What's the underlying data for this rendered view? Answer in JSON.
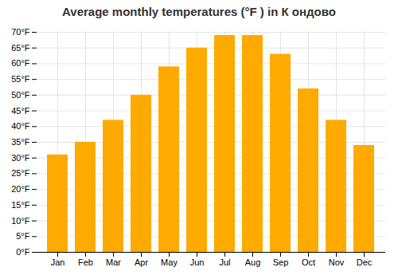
{
  "chart_data": {
    "type": "bar",
    "title": "Average monthly temperatures (°F ) in К ондово",
    "categories": [
      "Jan",
      "Feb",
      "Mar",
      "Apr",
      "May",
      "Jun",
      "Jul",
      "Aug",
      "Sep",
      "Oct",
      "Nov",
      "Dec"
    ],
    "values": [
      31.0,
      35.0,
      42.0,
      50.0,
      59.0,
      65.0,
      69.0,
      69.0,
      63.0,
      52.0,
      42.0,
      34.0
    ],
    "color": "#FFAA00",
    "ylim": [
      0,
      70
    ],
    "yticks": [
      {
        "value": 0,
        "label": "0°F"
      },
      {
        "value": 5,
        "label": "5°F"
      },
      {
        "value": 10,
        "label": "10°F"
      },
      {
        "value": 15,
        "label": "15°F"
      },
      {
        "value": 20,
        "label": "20°F"
      },
      {
        "value": 25,
        "label": "25°F"
      },
      {
        "value": 30,
        "label": "30°F"
      },
      {
        "value": 35,
        "label": "35°F"
      },
      {
        "value": 40,
        "label": "40°F"
      },
      {
        "value": 45,
        "label": "45°F"
      },
      {
        "value": 50,
        "label": "50°F"
      },
      {
        "value": 55,
        "label": "55°F"
      },
      {
        "value": 60,
        "label": "60°F"
      },
      {
        "value": 65,
        "label": "65°F"
      },
      {
        "value": 70,
        "label": "70°F"
      }
    ],
    "grid": true
  }
}
